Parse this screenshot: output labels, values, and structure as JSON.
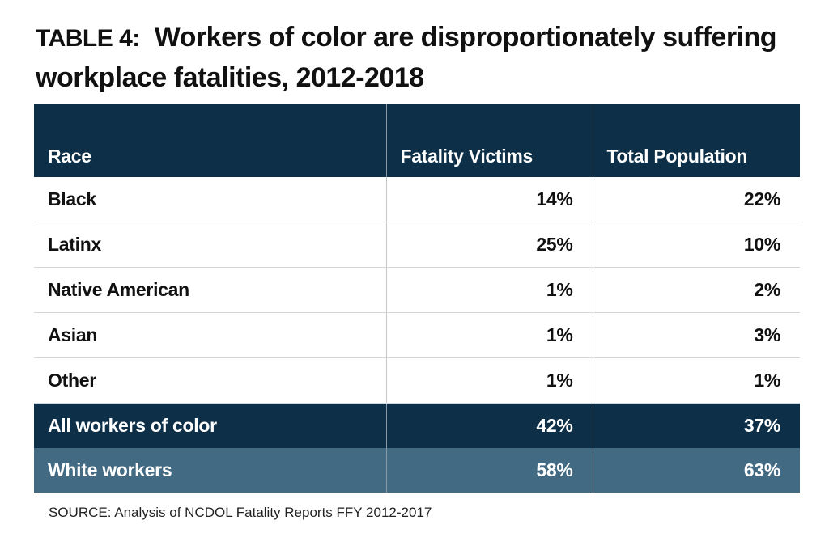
{
  "chart_data": {
    "type": "table",
    "title_prefix": "TABLE 4:",
    "title": "Workers of color are disproportionately suffering workplace fatalities, 2012-2018",
    "columns": [
      "Race",
      "Fatality Victims",
      "Total Population"
    ],
    "rows": [
      {
        "race": "Black",
        "fatality": "14%",
        "population": "22%"
      },
      {
        "race": "Latinx",
        "fatality": "25%",
        "population": "10%"
      },
      {
        "race": "Native American",
        "fatality": "1%",
        "population": "2%"
      },
      {
        "race": "Asian",
        "fatality": "1%",
        "population": "3%"
      },
      {
        "race": "Other",
        "fatality": "1%",
        "population": "1%"
      },
      {
        "race": "All workers of color",
        "fatality": "42%",
        "population": "37%"
      },
      {
        "race": "White workers",
        "fatality": "58%",
        "population": "63%"
      }
    ],
    "source": "SOURCE: Analysis of NCDOL Fatality Reports FFY 2012-2017"
  },
  "colors": {
    "header_bg": "#0d3048",
    "total_row_bg": "#0d3048",
    "white_row_bg": "#426a83"
  }
}
